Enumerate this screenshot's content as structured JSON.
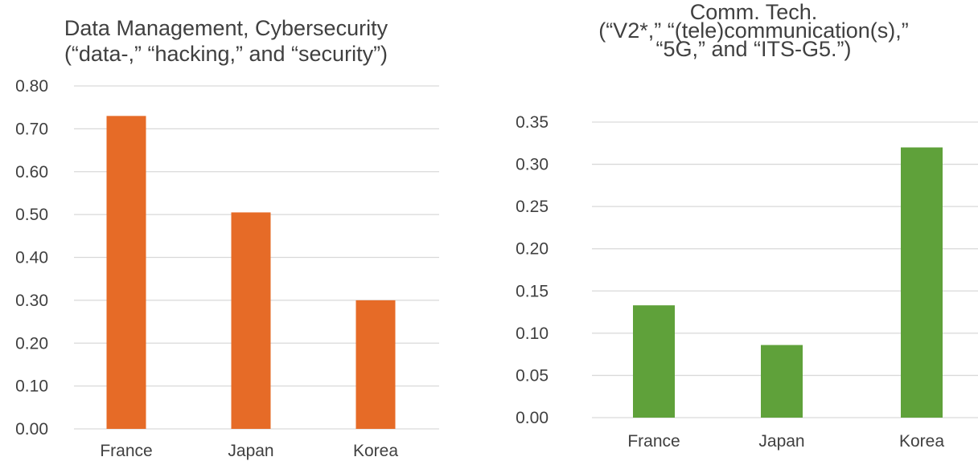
{
  "chart_data": [
    {
      "type": "bar",
      "title": [
        "Data Management, Cybersecurity",
        "(“data-,” “hacking,” and “security”)"
      ],
      "categories": [
        "France",
        "Japan",
        "Korea"
      ],
      "values": [
        0.73,
        0.505,
        0.3
      ],
      "ylim": [
        0,
        0.8
      ],
      "yticks": [
        "0.00",
        "0.10",
        "0.20",
        "0.30",
        "0.40",
        "0.50",
        "0.60",
        "0.70",
        "0.80"
      ],
      "xlabel": "",
      "ylabel": "",
      "grid": true,
      "color": "#e66b27"
    },
    {
      "type": "bar",
      "title": [
        "Comm. Tech.",
        "(“V2*,” “(tele)communication(s),”",
        "“5G,” and “ITS-G5.”)"
      ],
      "categories": [
        "France",
        "Japan",
        "Korea"
      ],
      "values": [
        0.133,
        0.086,
        0.32
      ],
      "ylim": [
        0,
        0.35
      ],
      "yticks": [
        "0.00",
        "0.05",
        "0.10",
        "0.15",
        "0.20",
        "0.25",
        "0.30",
        "0.35"
      ],
      "xlabel": "",
      "ylabel": "",
      "grid": true,
      "color": "#5fa13a"
    }
  ]
}
